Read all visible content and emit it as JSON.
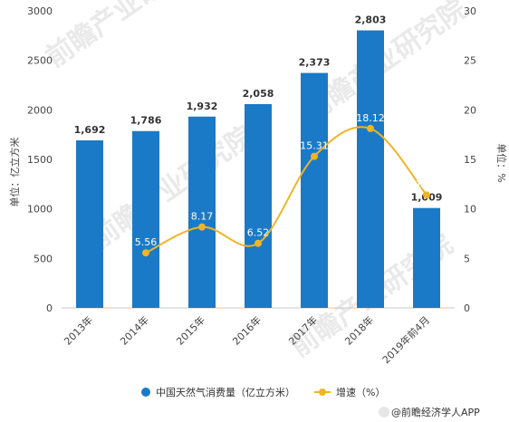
{
  "chart_data": {
    "type": "bar+line",
    "categories": [
      "2013年",
      "2014年",
      "2015年",
      "2016年",
      "2017年",
      "2018年",
      "2019年前4月"
    ],
    "series": [
      {
        "name": "中国天然气消费量（亿立方米）",
        "type": "bar",
        "axis": "left",
        "values": [
          1692,
          1786,
          1932,
          2058,
          2373,
          2803,
          1009
        ],
        "labels": [
          "1,692",
          "1,786",
          "1,932",
          "2,058",
          "2,373",
          "2,803",
          "1,009"
        ]
      },
      {
        "name": "增速（%）",
        "type": "line",
        "axis": "right",
        "values": [
          null,
          5.56,
          8.17,
          6.52,
          15.31,
          18.12,
          11.4
        ],
        "labels": [
          "",
          "5.56",
          "8.17",
          "6.52",
          "15.31",
          "18.12",
          "11.4"
        ]
      }
    ],
    "ylabel_left": "单位：亿立方米",
    "ylabel_right": "单位：%",
    "ylim_left": [
      0,
      3000
    ],
    "ylim_right": [
      0,
      30
    ],
    "yticks_left": [
      "0",
      "500",
      "1000",
      "1500",
      "2000",
      "2500",
      "3000"
    ],
    "yticks_right": [
      "0",
      "5",
      "10",
      "15",
      "20",
      "25",
      "30"
    ],
    "legend_position": "bottom",
    "grid": false
  },
  "colors": {
    "bar": "#1a7ac7",
    "line": "#f0b428"
  },
  "watermark": "前瞻产业研究院",
  "source": "@前瞻经济学人APP"
}
